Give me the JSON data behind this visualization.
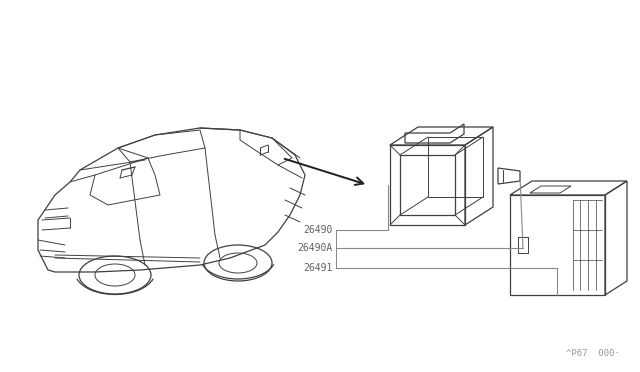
{
  "background_color": "#ffffff",
  "fig_width": 6.4,
  "fig_height": 3.72,
  "dpi": 100,
  "line_color": "#404040",
  "label_color": "#606060",
  "leader_color": "#888888",
  "font_size": 7.0,
  "diagram_code": "^P67  000·"
}
